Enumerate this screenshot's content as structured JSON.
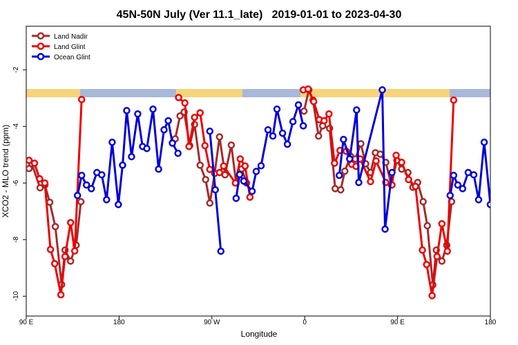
{
  "chart_data": {
    "type": "line",
    "title": "45N-50N July (Ver 11.1_late)   2019-01-01 to 2023-04-30",
    "x_label": "Longitude",
    "y_label": "XCO2 - MLO trend (ppm)",
    "xlim": [
      90,
      540
    ],
    "ylim": [
      -10.7,
      -0.46
    ],
    "xticks": [
      {
        "value": 90,
        "label": "90 E"
      },
      {
        "value": 180,
        "label": "180"
      },
      {
        "value": 270,
        "label": "90 W"
      },
      {
        "value": 360,
        "label": "0"
      },
      {
        "value": 450,
        "label": "90 E"
      },
      {
        "value": 540,
        "label": "180"
      }
    ],
    "yticks": [
      -10,
      -8,
      -6,
      -4,
      -2
    ],
    "legend": "top-left",
    "series": [
      {
        "name": "Land Nadir",
        "color": "#a52a2a",
        "x": [
          92.7,
          95.4,
          103.4,
          108.1,
          112.8,
          118.2,
          124.3,
          127.6,
          133,
          138.4,
          143,
          null,
          234.4,
          239.1,
          243.1,
          248.5,
          253.2,
          258.6,
          263.9,
          268,
          272.7,
          277.4,
          282.7,
          288.8,
          293.5,
          298.9,
          303.6,
          null,
          359.3,
          364,
          368,
          373.4,
          377.4,
          384.1,
          389.5,
          394.9,
          398.9,
          404.3,
          409,
          414.4,
          419.1,
          423.8,
          428.5,
          433.2,
          438.6,
          444,
          449.3,
          454,
          460.1,
          464.8,
          469.5,
          474.8,
          478.9,
          484.2,
          487.6,
          493,
          497.7,
          502.4
        ],
        "values": [
          -5.49,
          -5.32,
          -6.17,
          -6.07,
          -6.68,
          -7.54,
          -9.59,
          -8.37,
          -8.76,
          -8.2,
          -6.66,
          null,
          -4.44,
          -3.63,
          -3.49,
          -4.68,
          -3.93,
          -5.37,
          -5.88,
          -6.71,
          -5.66,
          -4.37,
          -5.71,
          -4.66,
          -6.0,
          -5.5,
          -6.0,
          null,
          -3.46,
          -2.71,
          -3.07,
          -4.34,
          -3.98,
          -4.07,
          -6.2,
          -6.24,
          -5.58,
          -5.05,
          -5.15,
          -4.61,
          -5.32,
          -5.63,
          -4.93,
          -4.98,
          -5.27,
          -6.07,
          -5.2,
          -5.51,
          -5.63,
          -6.15,
          -5.98,
          -6.66,
          -7.51,
          -9.6,
          -8.37,
          -8.76,
          -8.2,
          -6.66
        ]
      },
      {
        "name": "Land Glint",
        "color": "#ee0000",
        "x": [
          92.7,
          98,
          103,
          108,
          113.5,
          117.6,
          123.6,
          127.6,
          133,
          137,
          143.7,
          null,
          237.7,
          243.8,
          247.8,
          253.2,
          258.6,
          263.3,
          268,
          277.4,
          281.4,
          292.8,
          297.5,
          302.2,
          306.9,
          null,
          358.6,
          363.3,
          368.7,
          374.1,
          378.8,
          383.5,
          388.9,
          394.2,
          400.3,
          405.6,
          409.7,
          413.7,
          423.8,
          429.2,
          438.6,
          444.6,
          448.6,
          454,
          460.7,
          467.4,
          474.1,
          478.2,
          483.5,
          488.3,
          493,
          498.3,
          504.4
        ],
        "values": [
          -5.2,
          -5.3,
          -5.85,
          -6.0,
          -8.35,
          -8.85,
          -9.95,
          -8.6,
          -7.4,
          -8.4,
          -3.05,
          null,
          -2.98,
          -3.17,
          -4.71,
          -3.68,
          -3.52,
          -4.68,
          -5.52,
          -5.63,
          -5.4,
          -6.0,
          -5.15,
          -5.4,
          -6.5,
          null,
          -2.71,
          -2.68,
          -3.12,
          -3.76,
          -3.8,
          -3.56,
          -5.3,
          -4.85,
          -4.88,
          -5.34,
          -5.41,
          -5.15,
          -5.95,
          -5.22,
          -5.98,
          -6.07,
          -5.02,
          -5.27,
          -5.88,
          -6.12,
          -8.37,
          -8.88,
          -9.98,
          -8.6,
          -7.44,
          -8.41,
          -3.07
        ]
      },
      {
        "name": "Ocean Glint",
        "color": "#0000dd",
        "x": [
          139.7,
          143.7,
          148.4,
          153.1,
          158.5,
          163.2,
          167.9,
          173.3,
          179.3,
          183.4,
          187.4,
          192.1,
          198.1,
          202.8,
          206.9,
          212.9,
          218.3,
          223.6,
          227.7,
          231.7,
          237.1,
          null,
          268,
          273.3,
          278.7,
          null,
          293.5,
          296.9,
          300.9,
          309,
          313,
          317.7,
          324.4,
          329.1,
          333.1,
          338.5,
          343.2,
          348.6,
          353.9,
          358.6,
          null,
          393.5,
          397.6,
          403.6,
          410.3,
          412.4,
          435.2,
          437.9,
          444.6,
          null,
          501,
          504.4,
          508.4,
          513.1,
          518.5,
          523.9,
          528.6,
          534,
          540
        ],
        "values": [
          -6.44,
          -5.73,
          -6.07,
          -6.2,
          -5.63,
          -5.71,
          -6.59,
          -4.56,
          -6.76,
          -5.37,
          -3.44,
          -5.07,
          -3.56,
          -4.71,
          -4.78,
          -3.39,
          -5.51,
          -4.12,
          -3.8,
          -4.59,
          -4.95,
          null,
          -4.17,
          -6.24,
          -8.41,
          null,
          -6.54,
          -5.7,
          -5.93,
          -6.29,
          -5.59,
          -5.39,
          -4.12,
          -4.34,
          -3.39,
          -4.24,
          -4.63,
          -3.83,
          -3.24,
          -3.98,
          null,
          -5.73,
          -4.46,
          -5.15,
          -3.42,
          -5.98,
          -2.71,
          -7.63,
          -5.63,
          null,
          -6.44,
          -5.73,
          -6.07,
          -6.2,
          -5.63,
          -5.71,
          -6.59,
          -4.56,
          -6.76
        ]
      }
    ]
  }
}
